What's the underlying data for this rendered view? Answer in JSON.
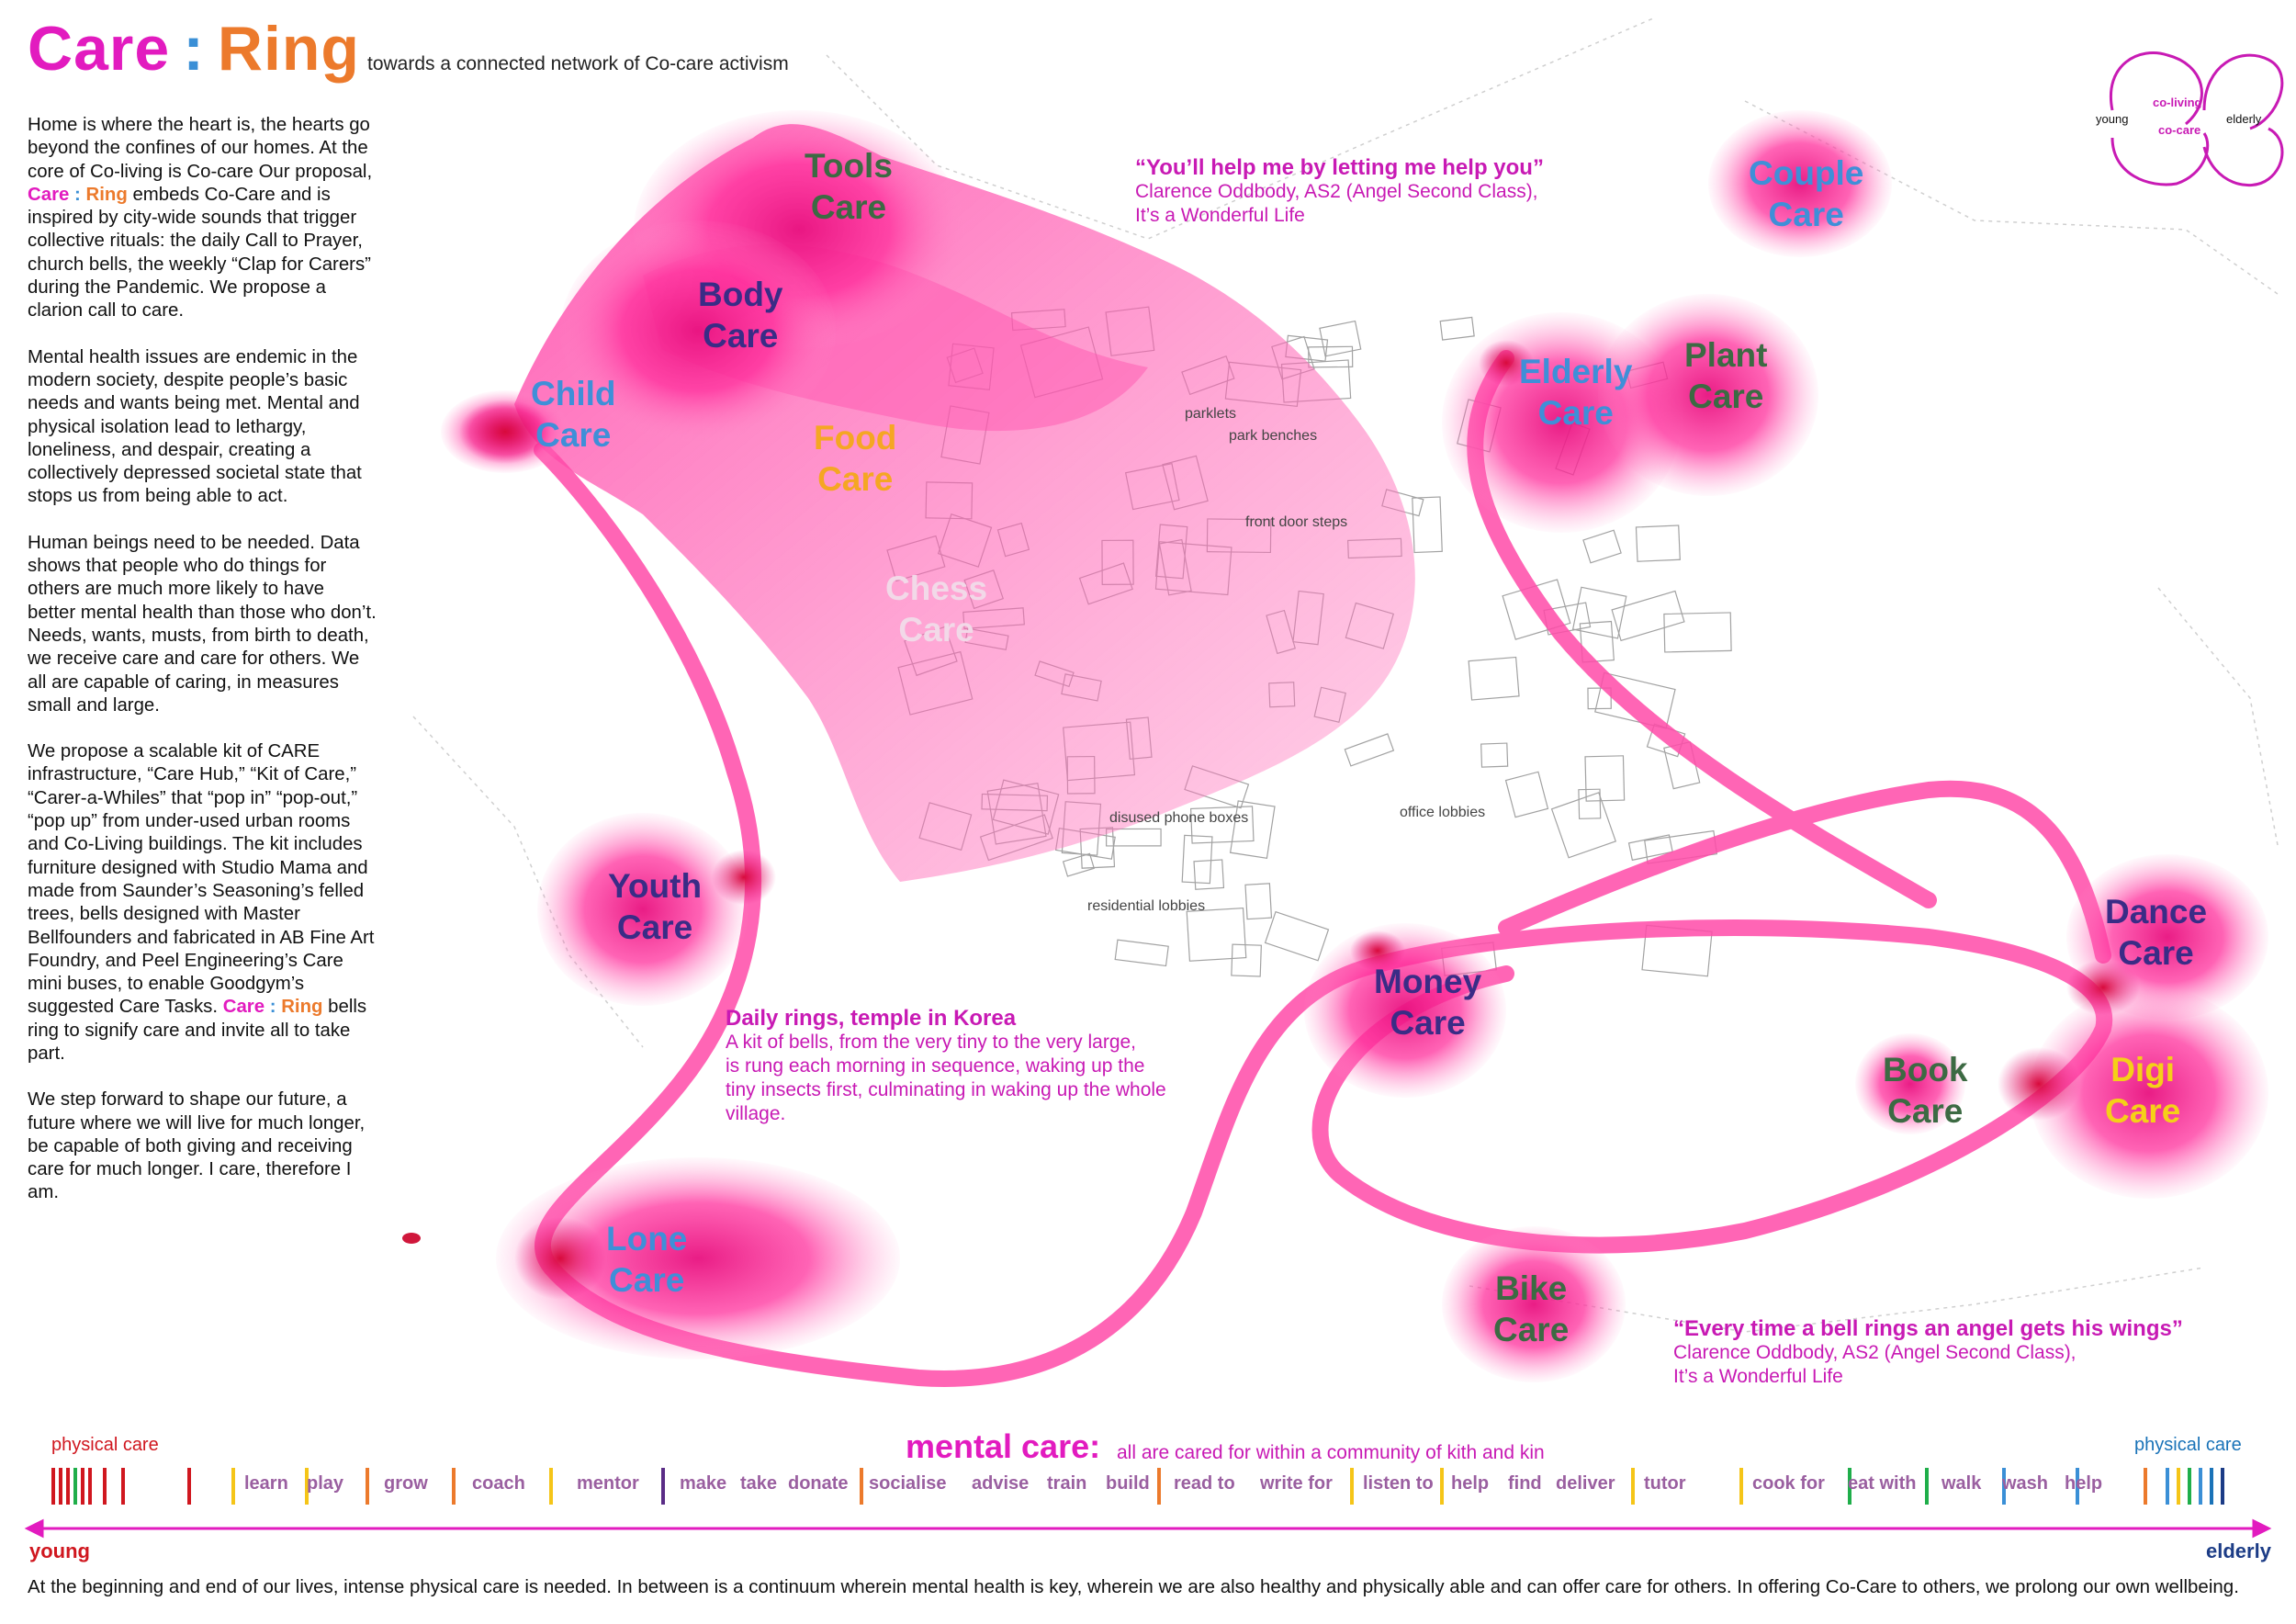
{
  "title": {
    "part1": "Care",
    "sep": ":",
    "part2": "Ring"
  },
  "subtitle": "towards a connected network of Co-care activism",
  "intro": {
    "p1_a": "Home is where the heart is, the hearts go beyond the confines of our homes. At the core of Co-living is Co-care Our proposal, ",
    "p1_care": "Care",
    "p1_sep": " : ",
    "p1_ring": "Ring",
    "p1_b": " embeds Co-Care and is inspired by city-wide sounds that trigger collective rituals: the daily Call to Prayer, church bells, the weekly “Clap for Carers” during the Pandemic. We propose a clarion call to care.",
    "p2": "Mental health issues are endemic in the modern society, despite people’s basic needs and wants being met. Mental and physical isolation lead to lethargy, loneliness, and despair, creating a collectively depressed societal state that stops us from being able to act.",
    "p3": "Human beings need to be needed. Data shows that people who do things for others are much more likely to have better mental health than those who don’t. Needs, wants, musts, from birth to death, we receive care and care for others. We all are capable of caring, in measures small and large.",
    "p4_a": "We propose a scalable kit of CARE infrastructure, “Care Hub,” “Kit of Care,” “Carer-a-Whiles” that “pop in” “pop-out,” “pop up” from under-used urban rooms and Co-Living buildings.  The kit includes furniture designed with Studio Mama and made from Saunder’s Seasoning’s felled trees, bells designed with Master Bellfounders and fabricated in AB Fine Art Foundry, and Peel Engineering’s Care mini buses, to enable Goodgym’s suggested Care Tasks.  ",
    "p4_care": "Care",
    "p4_sep": " : ",
    "p4_ring": "Ring",
    "p4_b": " bells ring to signify care and invite all to take part.",
    "p5": "We step forward to shape our future, a future where we will live for much longer, be capable of both giving and receiving care for much longer. I care, therefore I am."
  },
  "care_labels": [
    {
      "l1": "Tools",
      "l2": "Care",
      "color": "#3c6a43"
    },
    {
      "l1": "Body",
      "l2": "Care",
      "color": "#3a2c86"
    },
    {
      "l1": "Child",
      "l2": "Care",
      "color": "#3f8fd8"
    },
    {
      "l1": "Food",
      "l2": "Care",
      "color": "#f5a623"
    },
    {
      "l1": "Chess",
      "l2": "Care",
      "color": "#f2d9e8"
    },
    {
      "l1": "Youth",
      "l2": "Care",
      "color": "#3a2c86"
    },
    {
      "l1": "Lone",
      "l2": "Care",
      "color": "#3f8fd8"
    },
    {
      "l1": "Elderly",
      "l2": "Care",
      "color": "#3f8fd8"
    },
    {
      "l1": "Plant",
      "l2": "Care",
      "color": "#3c6a43"
    },
    {
      "l1": "Couple",
      "l2": "Care",
      "color": "#3f8fd8"
    },
    {
      "l1": "Money",
      "l2": "Care",
      "color": "#3a2c86"
    },
    {
      "l1": "Dance",
      "l2": "Care",
      "color": "#3a2c86"
    },
    {
      "l1": "Book",
      "l2": "Care",
      "color": "#3c6a43"
    },
    {
      "l1": "Digi",
      "l2": "Care",
      "color": "#f5d018"
    },
    {
      "l1": "Bike",
      "l2": "Care",
      "color": "#3c6a43"
    }
  ],
  "streets": [
    "parklets",
    "park benches",
    "front door steps",
    "disused phone boxes",
    "office lobbies",
    "residential lobbies"
  ],
  "quote1": {
    "headline": "“You’ll help me by letting me help you”",
    "line1": "Clarence Oddbody, AS2 (Angel Second Class),",
    "line2": "It’s a Wonderful Life"
  },
  "quote2": {
    "headline": "“Every time a bell rings an angel gets his wings”",
    "line1": "Clarence Oddbody, AS2 (Angel Second Class),",
    "line2": "It’s a Wonderful Life"
  },
  "korea": {
    "headline": "Daily rings, temple in Korea",
    "l1": "A kit of bells, from the very tiny to the very large,",
    "l2": "is rung each morning in sequence, waking up the",
    "l3": "tiny insects first, culminating in waking up the whole",
    "l4": "village."
  },
  "cycle": {
    "coliving": "co-living",
    "cocare": "co-care",
    "young": "young",
    "elderly": "elderly"
  },
  "scale": {
    "physical_left": "physical care",
    "physical_right": "physical care",
    "mental": "mental care:",
    "mental_sub": "all are cared for within a community of kith and kin",
    "activities": [
      "learn",
      "play",
      "grow",
      "coach",
      "mentor",
      "make",
      "take",
      "donate",
      "socialise",
      "advise",
      "train",
      "build",
      "read to",
      "write for",
      "listen to",
      "help",
      "find",
      "deliver",
      "tutor",
      "cook for",
      "eat with",
      "walk",
      "wash",
      "help"
    ],
    "young": "young",
    "elderly": "elderly"
  },
  "footer": "At the beginning and end of our lives, intense physical care is needed. In between is a continuum wherein mental health is key, wherein we are also healthy and physically able and can offer care for others. In offering Co-Care to others, we prolong our own wellbeing.",
  "colors": {
    "magenta": "#e81b8a",
    "pink_light": "#ff7fc0",
    "accent_blue": "#3a8fd6",
    "accent_orange": "#ec7a2c"
  }
}
